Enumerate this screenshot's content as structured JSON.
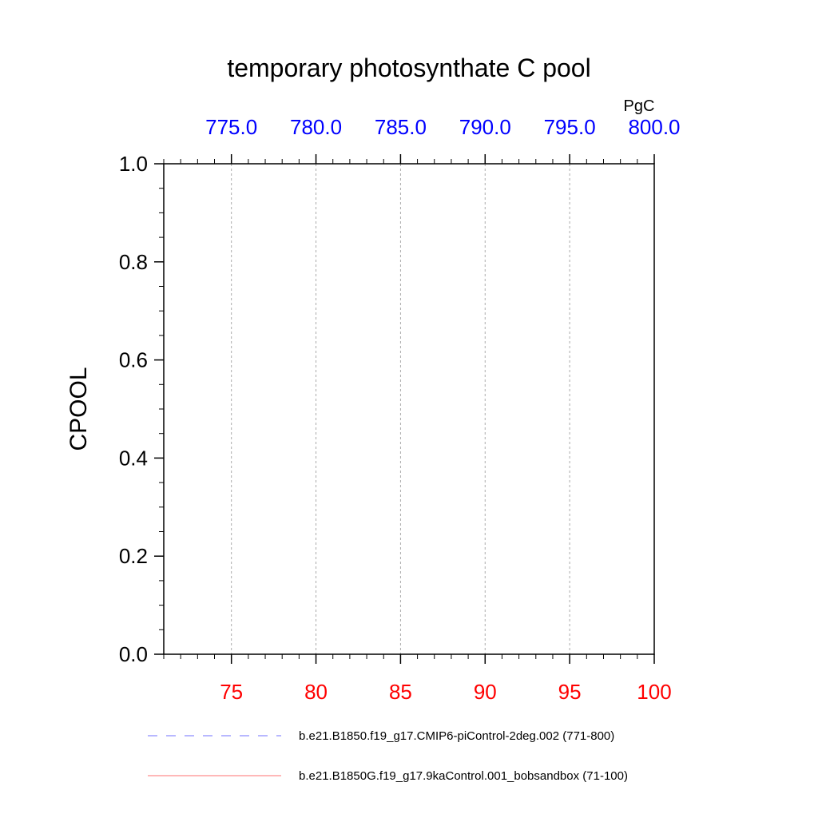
{
  "chart_data": {
    "type": "line",
    "title": "temporary photosynthate C pool",
    "units": "PgC",
    "ylabel": "CPOOL",
    "xlabel": "",
    "ylim": [
      0,
      1.0
    ],
    "yticks": [
      "0.0",
      "0.2",
      "0.4",
      "0.6",
      "0.8",
      "1.0"
    ],
    "y_minor_step": 0.05,
    "x_bottom": {
      "range": [
        71,
        100
      ],
      "ticks": [
        75,
        80,
        85,
        90,
        95,
        100
      ],
      "tick_labels": [
        "75",
        "80",
        "85",
        "90",
        "95",
        "100"
      ],
      "color": "#ff0000"
    },
    "x_top": {
      "range": [
        771,
        800
      ],
      "ticks": [
        775,
        780,
        785,
        790,
        795,
        800
      ],
      "tick_labels": [
        "775.0",
        "780.0",
        "785.0",
        "790.0",
        "795.0",
        "800.0"
      ],
      "color": "#0000ff"
    },
    "grid": {
      "x": "dashed-vertical",
      "y": "off"
    },
    "legend_position": "bottom",
    "series": [
      {
        "name": "b.e21.B1850.f19_g17.CMIP6-piControl-2deg.002 (771-800)",
        "color": "#0000ff",
        "style": "dashed",
        "axis": "top",
        "x": [
          771,
          775,
          780,
          785,
          790,
          795,
          800
        ],
        "values": [
          0,
          0,
          0,
          0,
          0,
          0,
          0
        ]
      },
      {
        "name": "b.e21.B1850G.f19_g17.9kaControl.001_bobsandbox (71-100)",
        "color": "#ff0000",
        "style": "solid",
        "axis": "bottom",
        "x": [
          71,
          75,
          80,
          85,
          90,
          95,
          100
        ],
        "values": [
          0,
          0,
          0,
          0,
          0,
          0,
          0
        ]
      }
    ]
  }
}
